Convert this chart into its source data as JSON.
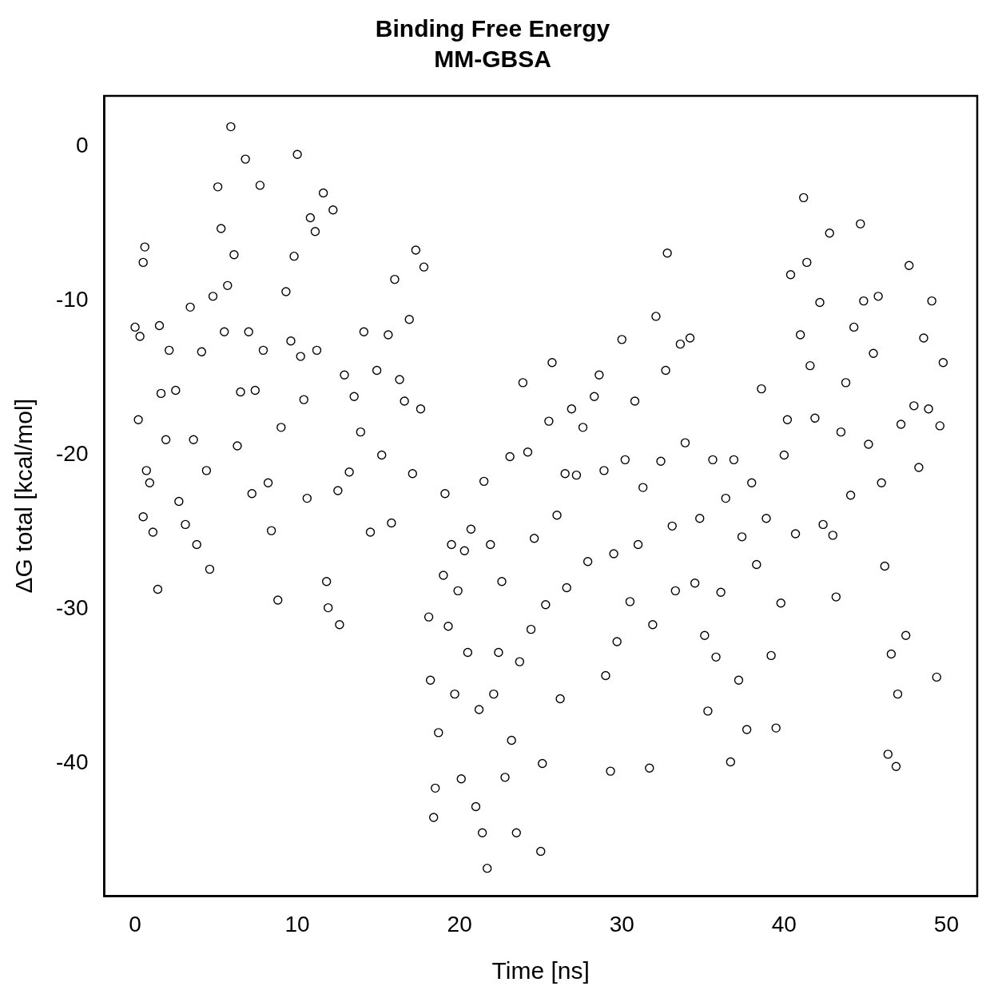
{
  "chart_data": {
    "type": "scatter",
    "title": "Binding Free Energy",
    "subtitle": "MM-GBSA",
    "xlabel": "Time [ns]",
    "ylabel": "ΔG total [kcal/mol]",
    "color": "#000000",
    "marker": "circle",
    "grid": false,
    "legend": false,
    "xlim": [
      -1.9,
      51.9
    ],
    "xticks": [
      0,
      10,
      20,
      30,
      40,
      50
    ],
    "ylim": [
      -48.6,
      3.3
    ],
    "yticks": [
      -40,
      -30,
      -20,
      -10,
      0
    ],
    "x": [
      0,
      0.2,
      0.3,
      0.5,
      0.6,
      0.5,
      0.7,
      0.9,
      1.1,
      1.4,
      1.5,
      1.6,
      1.9,
      2.1,
      2.5,
      2.7,
      3.1,
      3.4,
      3.6,
      3.8,
      4.1,
      4.4,
      4.6,
      4.8,
      5.1,
      5.3,
      5.5,
      5.7,
      5.9,
      6.1,
      6.3,
      6.5,
      6.8,
      7.0,
      7.2,
      7.4,
      7.7,
      7.9,
      8.2,
      8.4,
      8.8,
      9.0,
      9.3,
      9.6,
      9.8,
      10.0,
      10.2,
      10.4,
      10.6,
      10.8,
      11.1,
      11.2,
      11.6,
      11.8,
      11.9,
      12.2,
      12.5,
      12.6,
      12.9,
      13.2,
      13.5,
      13.9,
      14.1,
      14.5,
      14.9,
      15.2,
      15.6,
      15.8,
      16.0,
      16.3,
      16.6,
      16.9,
      17.1,
      17.3,
      17.6,
      17.8,
      18.1,
      18.2,
      18.4,
      18.5,
      18.7,
      19.0,
      19.1,
      19.3,
      19.5,
      19.7,
      19.9,
      20.1,
      20.3,
      20.5,
      20.7,
      21.0,
      21.2,
      21.4,
      21.5,
      21.7,
      21.9,
      22.1,
      22.4,
      22.6,
      22.8,
      23.1,
      23.2,
      23.5,
      23.7,
      23.9,
      24.2,
      24.4,
      24.6,
      25.0,
      25.1,
      25.3,
      25.5,
      25.7,
      26.0,
      26.2,
      26.5,
      26.6,
      26.9,
      27.2,
      27.6,
      27.9,
      28.3,
      28.6,
      28.9,
      29.0,
      29.3,
      29.5,
      29.7,
      30.0,
      30.2,
      30.5,
      30.8,
      31.0,
      31.3,
      31.7,
      31.9,
      32.1,
      32.4,
      32.7,
      32.8,
      33.1,
      33.3,
      33.6,
      33.9,
      34.2,
      34.5,
      34.8,
      35.1,
      35.3,
      35.6,
      35.8,
      36.1,
      36.4,
      36.7,
      36.9,
      37.2,
      37.4,
      37.7,
      38.0,
      38.3,
      38.6,
      38.9,
      39.2,
      39.5,
      39.8,
      40.0,
      40.2,
      40.4,
      40.7,
      41.0,
      41.2,
      41.4,
      41.6,
      41.9,
      42.2,
      42.4,
      42.8,
      43.0,
      43.2,
      43.5,
      43.8,
      44.1,
      44.3,
      44.7,
      44.9,
      45.2,
      45.5,
      45.8,
      46.0,
      46.2,
      46.4,
      46.6,
      46.9,
      47.0,
      47.2,
      47.5,
      47.7,
      48.0,
      48.3,
      48.6,
      48.9,
      49.1,
      49.4,
      49.6,
      49.8
    ],
    "values": [
      -11.7,
      -17.7,
      -12.3,
      -7.5,
      -6.5,
      -24,
      -21,
      -21.8,
      -25,
      -28.7,
      -11.6,
      -16,
      -19,
      -13.2,
      -15.8,
      -23,
      -24.5,
      -10.4,
      -19,
      -25.8,
      -13.3,
      -21,
      -27.4,
      -9.7,
      -2.6,
      -5.3,
      -12,
      -9,
      1.3,
      -7,
      -19.4,
      -15.9,
      -0.8,
      -12,
      -22.5,
      -15.8,
      -2.5,
      -13.2,
      -21.8,
      -24.9,
      -29.4,
      -18.2,
      -9.4,
      -12.6,
      -7.1,
      -0.5,
      -13.6,
      -16.4,
      -22.8,
      -4.6,
      -5.5,
      -13.2,
      -3,
      -28.2,
      -29.9,
      -4.1,
      -22.3,
      -31,
      -14.8,
      -21.1,
      -16.2,
      -18.5,
      -12,
      -25,
      -14.5,
      -20,
      -12.2,
      -24.4,
      -8.6,
      -15.1,
      -16.5,
      -11.2,
      -21.2,
      -6.7,
      -17,
      -7.8,
      -30.5,
      -34.6,
      -43.5,
      -41.6,
      -38,
      -27.8,
      -22.5,
      -31.1,
      -25.8,
      -35.5,
      -28.8,
      -41,
      -26.2,
      -32.8,
      -24.8,
      -42.8,
      -36.5,
      -44.5,
      -21.7,
      -46.8,
      -25.8,
      -35.5,
      -32.8,
      -28.2,
      -40.9,
      -20.1,
      -38.5,
      -44.5,
      -33.4,
      -15.3,
      -19.8,
      -31.3,
      -25.4,
      -45.7,
      -40,
      -29.7,
      -17.8,
      -14,
      -23.9,
      -35.8,
      -21.2,
      -28.6,
      -17,
      -21.3,
      -18.2,
      -26.9,
      -16.2,
      -14.8,
      -21,
      -34.3,
      -40.5,
      -26.4,
      -32.1,
      -12.5,
      -20.3,
      -29.5,
      -16.5,
      -25.8,
      -22.1,
      -40.3,
      -31,
      -11,
      -20.4,
      -14.5,
      -6.9,
      -24.6,
      -28.8,
      -12.8,
      -19.2,
      -12.4,
      -28.3,
      -24.1,
      -31.7,
      -36.6,
      -20.3,
      -33.1,
      -28.9,
      -22.8,
      -39.9,
      -20.3,
      -34.6,
      -25.3,
      -37.8,
      -21.8,
      -27.1,
      -15.7,
      -24.1,
      -33,
      -37.7,
      -29.6,
      -20,
      -17.7,
      -8.3,
      -25.1,
      -12.2,
      -3.3,
      -7.5,
      -14.2,
      -17.6,
      -10.1,
      -24.5,
      -5.6,
      -25.2,
      -29.2,
      -18.5,
      -15.3,
      -22.6,
      -11.7,
      -5,
      -10,
      -19.3,
      -13.4,
      -9.7,
      -21.8,
      -27.2,
      -39.4,
      -32.9,
      -40.2,
      -35.5,
      -18,
      -31.7,
      -7.7,
      -16.8,
      -20.8,
      -12.4,
      -17,
      -10,
      -34.4,
      -18.1,
      -14
    ]
  }
}
